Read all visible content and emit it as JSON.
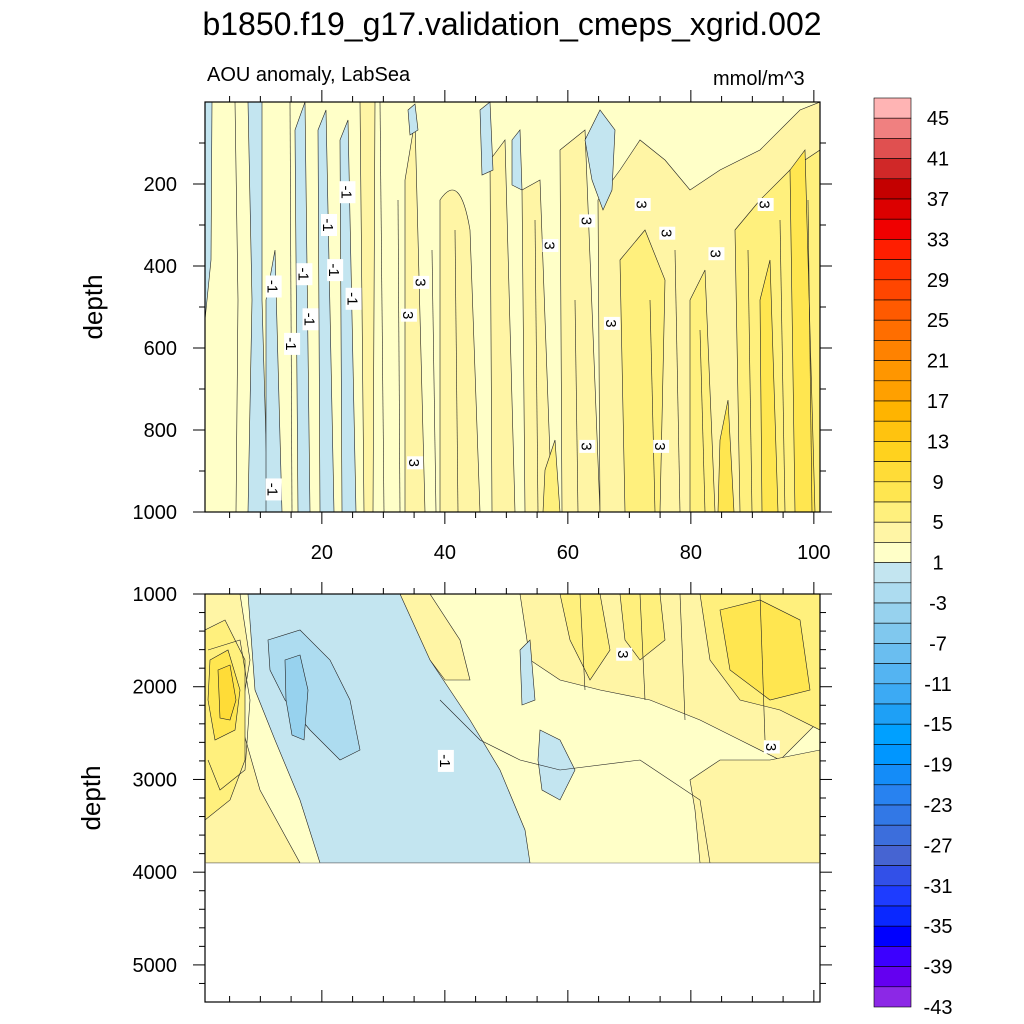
{
  "title": "b1850.f19_g17.validation_cmeps_xgrid.002",
  "subtitle_left": "AOU anomaly, LabSea",
  "subtitle_right": "mmol/m^3",
  "chart_data": [
    {
      "type": "heatmap",
      "panel": "upper",
      "title": "",
      "xlabel": "",
      "ylabel": "depth",
      "xlim": [
        1,
        101
      ],
      "ylim": [
        1000,
        0
      ],
      "xticks": [
        "20",
        "40",
        "60",
        "80",
        "100"
      ],
      "yticks": [
        "200",
        "400",
        "600",
        "800",
        "1000"
      ],
      "contour_labels": [
        {
          "text": "-1",
          "x": 24,
          "y": 220
        },
        {
          "text": "-1",
          "x": 21,
          "y": 300
        },
        {
          "text": "-1",
          "x": 17,
          "y": 420
        },
        {
          "text": "-1",
          "x": 22,
          "y": 410
        },
        {
          "text": "-1",
          "x": 12,
          "y": 450
        },
        {
          "text": "-1",
          "x": 25,
          "y": 480
        },
        {
          "text": "-1",
          "x": 18,
          "y": 530
        },
        {
          "text": "-1",
          "x": 15,
          "y": 590
        },
        {
          "text": "-1",
          "x": 12,
          "y": 945
        },
        {
          "text": "3",
          "x": 36,
          "y": 440
        },
        {
          "text": "3",
          "x": 34,
          "y": 520
        },
        {
          "text": "3",
          "x": 35,
          "y": 880
        },
        {
          "text": "3",
          "x": 57,
          "y": 350
        },
        {
          "text": "3",
          "x": 63,
          "y": 290
        },
        {
          "text": "3",
          "x": 72,
          "y": 250
        },
        {
          "text": "3",
          "x": 76,
          "y": 320
        },
        {
          "text": "3",
          "x": 84,
          "y": 370
        },
        {
          "text": "3",
          "x": 92,
          "y": 250
        },
        {
          "text": "3",
          "x": 67,
          "y": 540
        },
        {
          "text": "3",
          "x": 63,
          "y": 840
        },
        {
          "text": "3",
          "x": 75,
          "y": 840
        }
      ]
    },
    {
      "type": "heatmap",
      "panel": "lower",
      "title": "",
      "xlabel": "",
      "ylabel": "depth",
      "xlim": [
        1,
        101
      ],
      "ylim": [
        5400,
        1000
      ],
      "xticks": [],
      "yticks": [
        "1000",
        "2000",
        "3000",
        "4000",
        "5000"
      ],
      "data_bottom_depth": 3870,
      "contour_labels": [
        {
          "text": "-1",
          "x": 40,
          "y": 2800
        },
        {
          "text": "3",
          "x": 69,
          "y": 1650
        },
        {
          "text": "3",
          "x": 93,
          "y": 2650
        }
      ]
    }
  ],
  "colorbar": {
    "labels": [
      "45",
      "41",
      "37",
      "33",
      "29",
      "25",
      "21",
      "17",
      "13",
      "9",
      "5",
      "1",
      "-3",
      "-7",
      "-11",
      "-15",
      "-19",
      "-23",
      "-27",
      "-31",
      "-35",
      "-39",
      "-43"
    ],
    "colors": [
      "#FFB4B4",
      "#F08080",
      "#E05050",
      "#D02828",
      "#C40000",
      "#DC0000",
      "#F00000",
      "#FF1E00",
      "#FF3200",
      "#FF4600",
      "#FF5A00",
      "#FF6E00",
      "#FF8200",
      "#FF9600",
      "#FFA000",
      "#FFB400",
      "#FFC30F",
      "#FFD21E",
      "#FFDC37",
      "#FFE650",
      "#FFF07D",
      "#FFF5A5",
      "#FFFFC8",
      "#C3E5F0",
      "#ADDCF0",
      "#97D2EE",
      "#80C8EE",
      "#6ABEF0",
      "#54B4F2",
      "#3CAAF4",
      "#1EA0F6",
      "#00A0FF",
      "#0096FF",
      "#148CF8",
      "#2882F0",
      "#3278E6",
      "#3C6EDC",
      "#4664D2",
      "#3250E8",
      "#1E3CFF",
      "#0A28FF",
      "#0000FF",
      "#3C00FF",
      "#6400F0",
      "#8C28E6"
    ]
  }
}
